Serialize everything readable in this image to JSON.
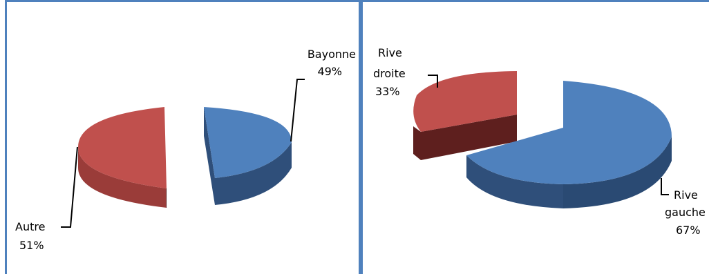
{
  "colors": {
    "border": "#4f81bd",
    "blue_top": "#4f81bd",
    "blue_side": "#2f4f7a",
    "red_top": "#c0504d",
    "red_side": "#5e1f1e"
  },
  "chart_data": [
    {
      "type": "pie",
      "style": "3d-exploded",
      "title": "",
      "slices": [
        {
          "label": "Bayonne",
          "percent_label": "49%",
          "value": 49,
          "color": "#4f81bd"
        },
        {
          "label": "Autre",
          "percent_label": "51%",
          "value": 51,
          "color": "#c0504d"
        }
      ],
      "legend": "none"
    },
    {
      "type": "pie",
      "style": "3d-exploded",
      "title": "",
      "slices": [
        {
          "label_line1": "Rive",
          "label_line2": "droite",
          "percent_label": "33%",
          "value": 33,
          "color": "#c0504d"
        },
        {
          "label_line1": "Rive",
          "label_line2": "gauche",
          "percent_label": "67%",
          "value": 67,
          "color": "#4f81bd"
        }
      ],
      "legend": "none"
    }
  ]
}
